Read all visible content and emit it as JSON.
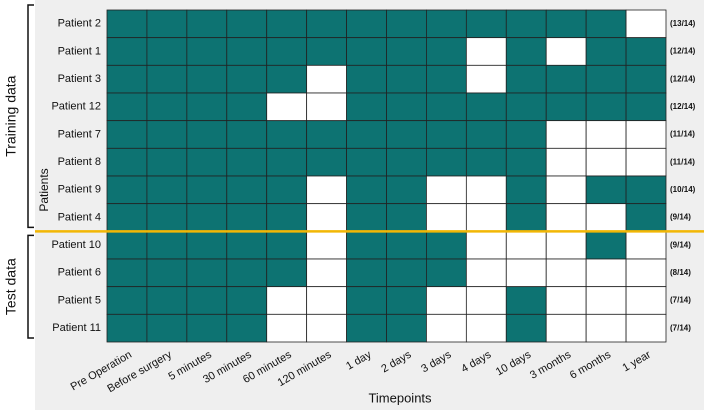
{
  "chart_data": {
    "type": "heatmap",
    "x_label": "Timepoints",
    "y_label": "Patients",
    "categories": [
      "Pre Operation",
      "Before surgery",
      "5 minutes",
      "30 minutes",
      "60 minutes",
      "120 minutes",
      "1 day",
      "2 days",
      "3 days",
      "4 days",
      "10 days",
      "3 months",
      "6 months",
      "1 year"
    ],
    "rows": [
      "Patient 2",
      "Patient 1",
      "Patient 3",
      "Patient 12",
      "Patient 7",
      "Patient 8",
      "Patient 9",
      "Patient 4",
      "Patient 10",
      "Patient 6",
      "Patient 5",
      "Patient 11"
    ],
    "values": [
      [
        1,
        1,
        1,
        1,
        1,
        1,
        1,
        1,
        1,
        1,
        1,
        1,
        1,
        0
      ],
      [
        1,
        1,
        1,
        1,
        1,
        1,
        1,
        1,
        1,
        0,
        1,
        0,
        1,
        1
      ],
      [
        1,
        1,
        1,
        1,
        1,
        0,
        1,
        1,
        1,
        0,
        1,
        1,
        1,
        1
      ],
      [
        1,
        1,
        1,
        1,
        0,
        0,
        1,
        1,
        1,
        1,
        1,
        1,
        1,
        1
      ],
      [
        1,
        1,
        1,
        1,
        1,
        1,
        1,
        1,
        1,
        1,
        1,
        0,
        0,
        0
      ],
      [
        1,
        1,
        1,
        1,
        1,
        1,
        1,
        1,
        1,
        1,
        1,
        0,
        0,
        0
      ],
      [
        1,
        1,
        1,
        1,
        1,
        0,
        1,
        1,
        0,
        0,
        1,
        0,
        1,
        1
      ],
      [
        1,
        1,
        1,
        1,
        1,
        0,
        1,
        1,
        0,
        0,
        1,
        0,
        0,
        1
      ],
      [
        1,
        1,
        1,
        1,
        1,
        0,
        1,
        1,
        1,
        0,
        0,
        0,
        1,
        0
      ],
      [
        1,
        1,
        1,
        1,
        1,
        0,
        1,
        1,
        1,
        0,
        0,
        0,
        0,
        0
      ],
      [
        1,
        1,
        1,
        1,
        0,
        0,
        1,
        1,
        0,
        0,
        1,
        0,
        0,
        0
      ],
      [
        1,
        1,
        1,
        1,
        0,
        0,
        1,
        1,
        0,
        0,
        1,
        0,
        0,
        0
      ]
    ],
    "value_labels": [
      "(13/14)",
      "(12/14)",
      "(12/14)",
      "(12/14)",
      "(11/14)",
      "(11/14)",
      "(10/14)",
      "(9/14)",
      "(9/14)",
      "(8/14)",
      "(7/14)",
      "(7/14)"
    ],
    "groups": [
      {
        "name": "Training data",
        "count": 8
      },
      {
        "name": "Test data",
        "count": 4
      }
    ],
    "color": "#0d7372",
    "empty_color": "#ffffff",
    "divider_color": "#f2b705"
  }
}
